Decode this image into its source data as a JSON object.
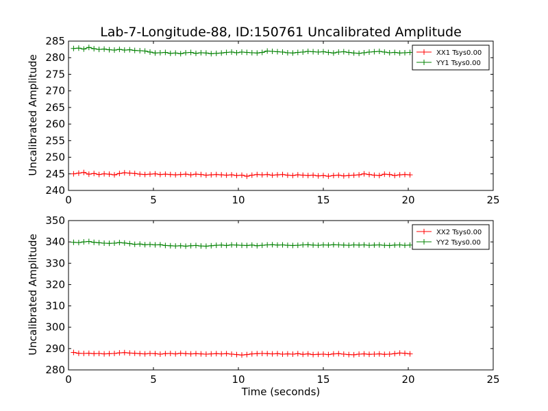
{
  "chart_data": [
    {
      "type": "line",
      "title": "Lab-7-Longitude-88, ID:150761 Uncalibrated Amplitude",
      "xlabel": "",
      "ylabel": "Uncalibrated Amplitude",
      "xlim": [
        0,
        25
      ],
      "ylim": [
        240,
        285
      ],
      "xticks": [
        0,
        5,
        10,
        15,
        20,
        25
      ],
      "yticks": [
        240,
        245,
        250,
        255,
        260,
        265,
        270,
        275,
        280,
        285
      ],
      "legend_position": "top-right",
      "x": [
        0.3,
        0.6,
        0.9,
        1.2,
        1.5,
        1.8,
        2.1,
        2.4,
        2.7,
        3.0,
        3.3,
        3.6,
        3.9,
        4.2,
        4.5,
        4.8,
        5.1,
        5.4,
        5.7,
        6.0,
        6.3,
        6.6,
        6.9,
        7.2,
        7.5,
        7.8,
        8.1,
        8.4,
        8.7,
        9.0,
        9.3,
        9.6,
        9.9,
        10.2,
        10.5,
        10.8,
        11.1,
        11.4,
        11.7,
        12.0,
        12.3,
        12.6,
        12.9,
        13.2,
        13.5,
        13.8,
        14.1,
        14.4,
        14.7,
        15.0,
        15.3,
        15.6,
        15.9,
        16.2,
        16.5,
        16.8,
        17.1,
        17.4,
        17.7,
        18.0,
        18.3,
        18.6,
        18.9,
        19.2,
        19.5,
        19.8,
        20.1
      ],
      "series": [
        {
          "name": "XX1 Tsys0.00",
          "color": "#ff0000",
          "values": [
            245.0,
            245.2,
            245.4,
            244.9,
            245.1,
            244.8,
            245.0,
            244.9,
            244.7,
            245.1,
            245.3,
            245.2,
            245.1,
            244.9,
            244.8,
            244.9,
            245.0,
            244.8,
            244.9,
            244.8,
            244.7,
            244.8,
            244.9,
            244.7,
            244.9,
            244.8,
            244.6,
            244.7,
            244.8,
            244.7,
            244.6,
            244.7,
            244.5,
            244.6,
            244.3,
            244.6,
            244.8,
            244.7,
            244.8,
            244.6,
            244.7,
            244.8,
            244.6,
            244.5,
            244.7,
            244.6,
            244.5,
            244.6,
            244.4,
            244.5,
            244.3,
            244.5,
            244.6,
            244.4,
            244.5,
            244.6,
            244.7,
            245.0,
            244.8,
            244.6,
            244.5,
            244.9,
            244.8,
            244.5,
            244.7,
            244.8,
            244.7
          ]
        },
        {
          "name": "YY1 Tsys0.00",
          "color": "#008000",
          "values": [
            282.8,
            282.9,
            282.6,
            283.1,
            282.7,
            282.5,
            282.6,
            282.4,
            282.3,
            282.5,
            282.3,
            282.4,
            282.2,
            282.1,
            282.0,
            281.7,
            281.4,
            281.5,
            281.6,
            281.3,
            281.4,
            281.2,
            281.5,
            281.6,
            281.3,
            281.5,
            281.4,
            281.2,
            281.3,
            281.4,
            281.6,
            281.7,
            281.5,
            281.7,
            281.6,
            281.5,
            281.4,
            281.6,
            282.0,
            281.9,
            281.8,
            281.7,
            281.5,
            281.4,
            281.6,
            281.7,
            281.9,
            281.8,
            281.7,
            281.8,
            281.6,
            281.4,
            281.7,
            281.8,
            281.6,
            281.4,
            281.3,
            281.5,
            281.7,
            281.8,
            281.9,
            281.7,
            281.5,
            281.6,
            281.4,
            281.5,
            281.6
          ]
        }
      ]
    },
    {
      "type": "line",
      "title": "",
      "xlabel": "Time (seconds)",
      "ylabel": "Uncalibrated Amplitude",
      "xlim": [
        0,
        25
      ],
      "ylim": [
        280,
        350
      ],
      "xticks": [
        0,
        5,
        10,
        15,
        20,
        25
      ],
      "yticks": [
        280,
        290,
        300,
        310,
        320,
        330,
        340,
        350
      ],
      "legend_position": "top-right",
      "x": [
        0.3,
        0.6,
        0.9,
        1.2,
        1.5,
        1.8,
        2.1,
        2.4,
        2.7,
        3.0,
        3.3,
        3.6,
        3.9,
        4.2,
        4.5,
        4.8,
        5.1,
        5.4,
        5.7,
        6.0,
        6.3,
        6.6,
        6.9,
        7.2,
        7.5,
        7.8,
        8.1,
        8.4,
        8.7,
        9.0,
        9.3,
        9.6,
        9.9,
        10.2,
        10.5,
        10.8,
        11.1,
        11.4,
        11.7,
        12.0,
        12.3,
        12.6,
        12.9,
        13.2,
        13.5,
        13.8,
        14.1,
        14.4,
        14.7,
        15.0,
        15.3,
        15.6,
        15.9,
        16.2,
        16.5,
        16.8,
        17.1,
        17.4,
        17.7,
        18.0,
        18.3,
        18.6,
        18.9,
        19.2,
        19.5,
        19.8,
        20.1
      ],
      "series": [
        {
          "name": "XX2 Tsys0.00",
          "color": "#ff0000",
          "values": [
            288.2,
            287.8,
            287.7,
            287.8,
            287.6,
            287.7,
            287.5,
            287.6,
            287.7,
            288.0,
            288.1,
            287.9,
            287.8,
            287.6,
            287.5,
            287.7,
            287.6,
            287.4,
            287.6,
            287.7,
            287.5,
            287.8,
            287.6,
            287.5,
            287.6,
            287.5,
            287.4,
            287.5,
            287.6,
            287.5,
            287.6,
            287.4,
            287.2,
            287.0,
            287.2,
            287.5,
            287.6,
            287.7,
            287.6,
            287.5,
            287.6,
            287.4,
            287.5,
            287.4,
            287.6,
            287.3,
            287.5,
            287.2,
            287.3,
            287.4,
            287.2,
            287.5,
            287.6,
            287.4,
            287.2,
            287.1,
            287.4,
            287.5,
            287.3,
            287.4,
            287.5,
            287.3,
            287.4,
            287.6,
            287.9,
            287.8,
            287.5
          ]
        },
        {
          "name": "YY2 Tsys0.00",
          "color": "#008000",
          "values": [
            339.8,
            339.7,
            340.0,
            340.2,
            339.8,
            339.6,
            339.4,
            339.3,
            339.4,
            339.7,
            339.5,
            339.2,
            338.9,
            339.0,
            338.7,
            338.8,
            338.6,
            338.7,
            338.3,
            338.2,
            338.1,
            338.2,
            338.0,
            338.2,
            338.3,
            338.1,
            338.0,
            338.2,
            338.4,
            338.5,
            338.3,
            338.6,
            338.5,
            338.4,
            338.3,
            338.5,
            338.2,
            338.4,
            338.6,
            338.7,
            338.5,
            338.6,
            338.4,
            338.3,
            338.4,
            338.6,
            338.7,
            338.5,
            338.4,
            338.6,
            338.5,
            338.7,
            338.6,
            338.5,
            338.4,
            338.6,
            338.5,
            338.6,
            338.4,
            338.5,
            338.6,
            338.4,
            338.3,
            338.5,
            338.6,
            338.4,
            338.5
          ]
        }
      ]
    }
  ]
}
